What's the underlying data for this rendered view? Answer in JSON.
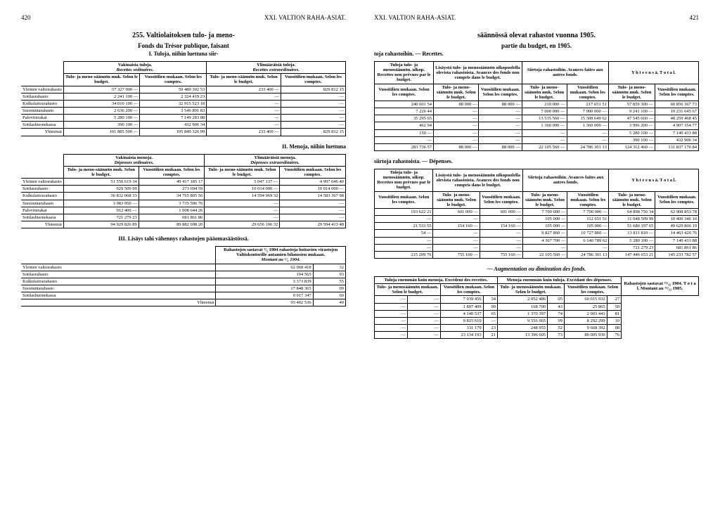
{
  "left": {
    "pageno": "420",
    "header": "XXI. VALTION RAHA-ASIAT.",
    "title": "255. Valtiolaitoksen tulo- ja meno-",
    "sub1": "Fonds du Trésor publique, faisant",
    "sub2": "I. Tuloja, niihin luettuna siir-",
    "t1": {
      "h1a": "Vakinaisia tuloja.",
      "h1b": "Recettes ordinaires.",
      "h2a": "Ylimääräisiä tuloja.",
      "h2b": "Recettes extraordinaires.",
      "c1": "Tulo- ja meno-säännön muk. Selon le budget.",
      "c2": "Vuositilien mukaan. Selon les comptes.",
      "c3": "Tulo- ja meno-säännön muk. Selon le budget.",
      "c4": "Vuositilien mukaan. Selon les comptes.",
      "rows": [
        [
          "Yleinen valtiorahasto",
          "57 327 900 —",
          "59 480 302 53",
          "233 400 —",
          "829 812 15"
        ],
        [
          "Sotilasrahasto",
          "2 241 100 —",
          "2 324 419 23",
          "—",
          "—"
        ],
        [
          "Kulkulaitosrahasto",
          "34 010 100 —",
          "32 915 523 18",
          "—",
          "—"
        ],
        [
          "Suostuntarahasto",
          "2 636 200 —",
          "3 546 891 83",
          "—",
          "—"
        ],
        [
          "Paloviinrakat",
          "5 280 100 —",
          "7 149 283 88",
          "—",
          "—"
        ],
        [
          "Sotilashuonekassa",
          "390 100 —",
          "432 906 34",
          "—",
          "—"
        ]
      ],
      "total": [
        "Yhteensä",
        "101 885 500 —",
        "105 849 326 99",
        "233 400 —",
        "829 812 15"
      ]
    },
    "sub3": "II. Menoja, niihin luettuna",
    "t2": {
      "h1a": "Vakinaisia menoja.",
      "h1b": "Dépenses ordinaires.",
      "h2a": "Ylimääräisiä menoja.",
      "h2b": "Dépenses extraordinaires.",
      "rows": [
        [
          "Yleinen valtiorahasto",
          "51 550 619 34",
          "49 417 185 17",
          "5 047 137 —",
          "4 997 046 40"
        ],
        [
          "Sotilasrahasto",
          "929 509 99",
          "273 694 59",
          "10 014 000 —",
          "10 014 000 —"
        ],
        [
          "Kulkulaitosrahasto",
          "36 832 068 33",
          "34 765 805 56",
          "14 594 969 32",
          "14 583 367 08"
        ],
        [
          "Suostuntarahasto",
          "3 983 950 —",
          "3 735 506 76",
          "—",
          "—"
        ],
        [
          "Paloviinrakat",
          "912 400 —",
          "1 008 644 26",
          "—",
          "—"
        ],
        [
          "Sotilashuonekassa",
          "721 279 23",
          "681 861 86",
          "—",
          "—"
        ]
      ],
      "total": [
        "Yhteensä",
        "94 929 826 89",
        "89 882 698 20",
        "29 656 106 32",
        "29 594 413 48"
      ]
    },
    "sub4": "III. Lisäys tahi vähennys rahastojen pääomasäästössä.",
    "t3": {
      "h1": "Rahastojen sastavat ¹/₁ 1904 rahastoja hoitavien virastojen Valtiokontorille antamien bilanssien mukaan.",
      "h2": "Montant au ¹/₁ 1904.",
      "rows": [
        [
          "Yleinen valtiorahasto",
          "62 068 418",
          "32"
        ],
        [
          "Sotilasrahasto",
          "194 565",
          "93"
        ],
        [
          "Kulkulaitosrahasto",
          "3 373 839",
          "55"
        ],
        [
          "Suostuntarahasto",
          "17 848 365",
          "09"
        ],
        [
          "Sotilashuonekassa",
          "9 917 347",
          "60"
        ]
      ],
      "total": [
        "Yhteensä",
        "93 402 536",
        "49"
      ]
    }
  },
  "right": {
    "pageno": "421",
    "header": "XXI. VALTION RAHA-ASIAT.",
    "title": "säännössä olevat rahastot vuonna 1905.",
    "sub1": "partie du budget, en 1905.",
    "sub2": "toja rahastoihin. — Recettes.",
    "t1": {
      "h1": "Tuloja tulo- ja menosäännön. ulkop. Recettes non prévues par le budget.",
      "h2": "Lisäystä tulo- ja menosäännön ulkopuolella olevista rahastoista. Avances des fonds non compris dans le budget.",
      "h3": "Siirtoja rahastoihin. Avances faites aux autres fonds.",
      "h4": "Y h t e e n s ä. T o t a l.",
      "c": [
        "Vuositilien mukaan. Selon les comptes.",
        "Tulo- ja meno-säännön muk. Selon le budget.",
        "Vuositilien mukaan. Selon les comptes.",
        "Tulo- ja meno-säännön muk. Selon le budget.",
        "Vuositilien mukaan. Selon les comptes.",
        "Tulo- ja meno-säännön muk. Selon le budget.",
        "Vuositilien mukaan. Selon les comptes."
      ],
      "rows": [
        [
          "240 601 54",
          "88 000 —",
          "88 000 —",
          "210 000 —",
          "217 651 51",
          "57 859 300 —",
          "60 856 367 73"
        ],
        [
          "7 226 44",
          "—",
          "—",
          "7 000 000 —",
          "7 900 000 —",
          "9 241 100 —",
          "10 231 645 67"
        ],
        [
          "35 295 65",
          "—",
          "—",
          "13 535 560 —",
          "15 308 649 62",
          "47 545 660 —",
          "48 259 468 45"
        ],
        [
          "462 94",
          "—",
          "—",
          "1 360 000 —",
          "1 360 000 —",
          "3 996 200 —",
          "4 907 354 77"
        ],
        [
          "150 —",
          "—",
          "—",
          "—",
          "—",
          "5 280 100 —",
          "7 149 433 88"
        ],
        [
          "—",
          "—",
          "—",
          "—",
          "—",
          "390 100 —",
          "432 906 34"
        ]
      ],
      "total": [
        "283 736 57",
        "88 000 —",
        "88 000 —",
        "22 105 560 —",
        "24 786 301 13",
        "124 312 460 —",
        "131 837 176 84"
      ]
    },
    "sub3": "siirtoja rahastoista. — Dépenses.",
    "t2": {
      "rows": [
        [
          "193 622 21",
          "601 000 —",
          "601 000 —",
          "7 700 000 —",
          "7 700 000 —",
          "64 898 756 34",
          "62 908 853 78"
        ],
        [
          "—",
          "—",
          "—",
          "105 000 —",
          "112 651 51",
          "11 048 509 99",
          "10 400 346 10"
        ],
        [
          "21 533 55",
          "154 160 —",
          "154 160 —",
          "105 000 —",
          "105 000 —",
          "51 686 197 65",
          "49 629 866 19"
        ],
        [
          "54 —",
          "—",
          "—",
          "9 827 860 —",
          "10 727 860 —",
          "13 811 810 —",
          "14 463 420 76"
        ],
        [
          "—",
          "—",
          "—",
          "4 367 700 —",
          "6 140 789 62",
          "5 280 100 —",
          "7 149 433 88"
        ],
        [
          "—",
          "—",
          "—",
          "—",
          "—",
          "721 279 23",
          "681 861 86"
        ]
      ],
      "total": [
        "215 209 76",
        "755 160 —",
        "755 160 —",
        "22 105 560 —",
        "24 786 301 13",
        "147 446 653 21",
        "145 233 782 57"
      ]
    },
    "sub4": "— Augmentation ou diminution des fonds.",
    "t3": {
      "h1": "Tuloja enemmän kuin menoja. Excédent des recettes.",
      "h2": "Menoja enemmän kuin tuloja. Excédant des dépenses.",
      "h3": "Rahastojen sastavat ³¹/₁₂ 1904. T o t a l. Montant au ³¹/₁₂ 1905.",
      "c": [
        "Tulo- ja menosäännön mukaan. Selon le budget.",
        "Vuositilien mukaan. Selon les comptes.",
        "Tulo- ja menosäännön mukaan. Selon le budget.",
        "Vuositilien mukaan. Selon les comptes."
      ],
      "rows": [
        [
          "—",
          "—",
          "7 039 456",
          "34",
          "2 052 486",
          "05",
          "60 015 932",
          "27"
        ],
        [
          "—",
          "—",
          "1 807 409",
          "99",
          "168 700",
          "43",
          "25 865",
          "50"
        ],
        [
          "—",
          "—",
          "4 140 537",
          "65",
          "1 370 397",
          "74",
          "2 003 441",
          "81"
        ],
        [
          "—",
          "—",
          "9 815 610",
          "—",
          "9 556 065",
          "99",
          "8 292 299",
          "10"
        ],
        [
          "—",
          "—",
          "331 179",
          "23",
          "248 955",
          "52",
          "9 668 392",
          "08"
        ]
      ],
      "total": [
        "—",
        "—",
        "23 134 193",
        "21",
        "13 396 605",
        "73",
        "80 005 930",
        "76"
      ]
    }
  }
}
